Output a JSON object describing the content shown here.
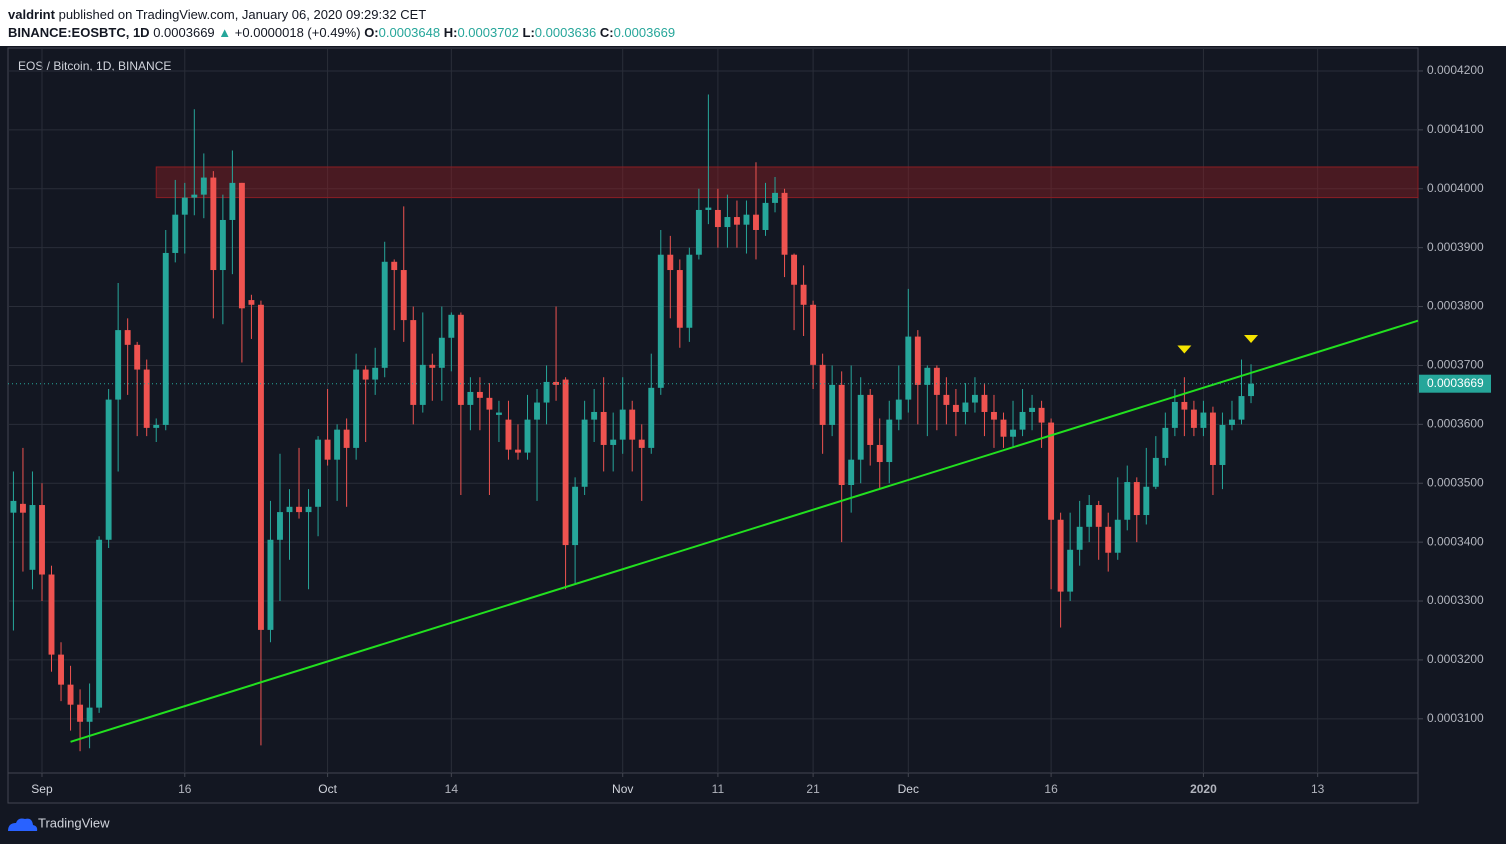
{
  "header": {
    "author": "valdrint",
    "published": "published on TradingView.com, January 06, 2020 09:29:32 CET",
    "symbol": "BINANCE:EOSBTC, 1D",
    "price": "0.0003669",
    "arrow": "▲",
    "change": "+0.0000018 (+0.49%)",
    "o_label": "O:",
    "o": "0.0003648",
    "h_label": "H:",
    "h": "0.0003702",
    "l_label": "L:",
    "l": "0.0003636",
    "c_label": "C:",
    "c": "0.0003669"
  },
  "footer": {
    "logo": "TradingView"
  },
  "chart_data": {
    "type": "candlestick",
    "title": "EOS / Bitcoin, 1D, BINANCE",
    "up_color": "#26a69a",
    "down_color": "#ef5350",
    "grid": true,
    "xlim": [
      -3.57,
      144.54
    ],
    "ylim": [
      0.0003008,
      0.0004239
    ],
    "xticks": [
      {
        "value": 0,
        "label": "Sep"
      },
      {
        "value": 15,
        "label": "16"
      },
      {
        "value": 30,
        "label": "Oct"
      },
      {
        "value": 43,
        "label": "14"
      },
      {
        "value": 61,
        "label": "Nov"
      },
      {
        "value": 71,
        "label": "11"
      },
      {
        "value": 81,
        "label": "21"
      },
      {
        "value": 91,
        "label": "Dec"
      },
      {
        "value": 106,
        "label": "16"
      },
      {
        "value": 122,
        "label": "2020"
      },
      {
        "value": 134,
        "label": "13"
      }
    ],
    "yticks": [
      {
        "value": 0.00031,
        "label": "0.0003100"
      },
      {
        "value": 0.00032,
        "label": "0.0003200"
      },
      {
        "value": 0.00033,
        "label": "0.0003300"
      },
      {
        "value": 0.00034,
        "label": "0.0003400"
      },
      {
        "value": 0.00035,
        "label": "0.0003500"
      },
      {
        "value": 0.00036,
        "label": "0.0003600"
      },
      {
        "value": 0.00037,
        "label": "0.0003700"
      },
      {
        "value": 0.00038,
        "label": "0.0003800"
      },
      {
        "value": 0.00039,
        "label": "0.0003900"
      },
      {
        "value": 0.0004,
        "label": "0.0004000"
      },
      {
        "value": 0.00041,
        "label": "0.0004100"
      },
      {
        "value": 0.00042,
        "label": "0.0004200"
      }
    ],
    "last_price": 0.0003669,
    "zone": {
      "x": [
        12,
        144.54
      ],
      "y": [
        0.0003985,
        0.0004037
      ],
      "color": "#8b1e24"
    },
    "trendline": {
      "x": [
        3,
        144.54
      ],
      "y": [
        0.0003061,
        0.0003776
      ],
      "color": "#22e01f"
    },
    "markers": {
      "x": [
        120,
        127
      ],
      "y": [
        0.0003727,
        0.0003745
      ],
      "color": "#f5e400"
    },
    "candles": [
      {
        "x": -3,
        "o": 0.000345,
        "h": 0.000352,
        "l": 0.000325,
        "c": 0.000347
      },
      {
        "x": -2,
        "o": 0.0003465,
        "h": 0.000356,
        "l": 0.000335,
        "c": 0.000345
      },
      {
        "x": -1,
        "o": 0.0003353,
        "h": 0.000352,
        "l": 0.000332,
        "c": 0.0003463
      },
      {
        "x": 0,
        "o": 0.0003463,
        "h": 0.00035,
        "l": 0.00033,
        "c": 0.0003345
      },
      {
        "x": 1,
        "o": 0.0003345,
        "h": 0.000336,
        "l": 0.000318,
        "c": 0.0003209
      },
      {
        "x": 2,
        "o": 0.0003209,
        "h": 0.000323,
        "l": 0.000313,
        "c": 0.0003158
      },
      {
        "x": 3,
        "o": 0.0003158,
        "h": 0.000319,
        "l": 0.000308,
        "c": 0.0003124
      },
      {
        "x": 4,
        "o": 0.0003124,
        "h": 0.000315,
        "l": 0.0003045,
        "c": 0.0003095
      },
      {
        "x": 5,
        "o": 0.0003095,
        "h": 0.000316,
        "l": 0.000305,
        "c": 0.0003119
      },
      {
        "x": 6,
        "o": 0.0003119,
        "h": 0.000341,
        "l": 0.000311,
        "c": 0.0003404
      },
      {
        "x": 7,
        "o": 0.0003404,
        "h": 0.000366,
        "l": 0.000339,
        "c": 0.0003642
      },
      {
        "x": 8,
        "o": 0.0003642,
        "h": 0.000384,
        "l": 0.000352,
        "c": 0.000376
      },
      {
        "x": 9,
        "o": 0.000376,
        "h": 0.000378,
        "l": 0.000365,
        "c": 0.0003735
      },
      {
        "x": 10,
        "o": 0.0003735,
        "h": 0.000374,
        "l": 0.000358,
        "c": 0.0003693
      },
      {
        "x": 11,
        "o": 0.0003693,
        "h": 0.000371,
        "l": 0.000358,
        "c": 0.0003594
      },
      {
        "x": 12,
        "o": 0.0003594,
        "h": 0.000361,
        "l": 0.000357,
        "c": 0.0003599
      },
      {
        "x": 13,
        "o": 0.0003599,
        "h": 0.000393,
        "l": 0.000359,
        "c": 0.0003891
      },
      {
        "x": 14,
        "o": 0.0003891,
        "h": 0.0004015,
        "l": 0.0003875,
        "c": 0.0003956
      },
      {
        "x": 15,
        "o": 0.0003956,
        "h": 0.000401,
        "l": 0.000389,
        "c": 0.0003985
      },
      {
        "x": 16,
        "o": 0.0003985,
        "h": 0.0004135,
        "l": 0.0003955,
        "c": 0.000399
      },
      {
        "x": 17,
        "o": 0.000399,
        "h": 0.000406,
        "l": 0.000395,
        "c": 0.0004019
      },
      {
        "x": 18,
        "o": 0.0004019,
        "h": 0.000403,
        "l": 0.000378,
        "c": 0.0003862
      },
      {
        "x": 19,
        "o": 0.0003862,
        "h": 0.000399,
        "l": 0.000377,
        "c": 0.0003947
      },
      {
        "x": 20,
        "o": 0.0003947,
        "h": 0.0004065,
        "l": 0.0003855,
        "c": 0.000401
      },
      {
        "x": 21,
        "o": 0.000401,
        "h": 0.000401,
        "l": 0.0003705,
        "c": 0.0003797
      },
      {
        "x": 22,
        "o": 0.0003811,
        "h": 0.000382,
        "l": 0.0003745,
        "c": 0.0003803
      },
      {
        "x": 23,
        "o": 0.0003803,
        "h": 0.000381,
        "l": 0.0003055,
        "c": 0.0003251
      },
      {
        "x": 24,
        "o": 0.0003251,
        "h": 0.000347,
        "l": 0.000323,
        "c": 0.0003404
      },
      {
        "x": 25,
        "o": 0.0003404,
        "h": 0.000355,
        "l": 0.00033,
        "c": 0.0003451
      },
      {
        "x": 26,
        "o": 0.0003451,
        "h": 0.000349,
        "l": 0.000337,
        "c": 0.000346
      },
      {
        "x": 27,
        "o": 0.000346,
        "h": 0.000356,
        "l": 0.000344,
        "c": 0.0003451
      },
      {
        "x": 28,
        "o": 0.0003451,
        "h": 0.000349,
        "l": 0.000332,
        "c": 0.000346
      },
      {
        "x": 29,
        "o": 0.000346,
        "h": 0.000358,
        "l": 0.000341,
        "c": 0.0003574
      },
      {
        "x": 30,
        "o": 0.0003574,
        "h": 0.000366,
        "l": 0.000353,
        "c": 0.000354
      },
      {
        "x": 31,
        "o": 0.000354,
        "h": 0.00036,
        "l": 0.000347,
        "c": 0.0003591
      },
      {
        "x": 32,
        "o": 0.0003591,
        "h": 0.000361,
        "l": 0.000346,
        "c": 0.000356
      },
      {
        "x": 33,
        "o": 0.000356,
        "h": 0.000372,
        "l": 0.000354,
        "c": 0.0003693
      },
      {
        "x": 34,
        "o": 0.0003693,
        "h": 0.00037,
        "l": 0.000357,
        "c": 0.0003676
      },
      {
        "x": 35,
        "o": 0.0003676,
        "h": 0.000373,
        "l": 0.000365,
        "c": 0.0003696
      },
      {
        "x": 36,
        "o": 0.0003696,
        "h": 0.000391,
        "l": 0.000368,
        "c": 0.0003876
      },
      {
        "x": 37,
        "o": 0.0003876,
        "h": 0.000388,
        "l": 0.000376,
        "c": 0.0003862
      },
      {
        "x": 38,
        "o": 0.0003862,
        "h": 0.000397,
        "l": 0.000374,
        "c": 0.0003777
      },
      {
        "x": 39,
        "o": 0.0003777,
        "h": 0.00038,
        "l": 0.00036,
        "c": 0.0003633
      },
      {
        "x": 40,
        "o": 0.0003633,
        "h": 0.000379,
        "l": 0.000362,
        "c": 0.0003701
      },
      {
        "x": 41,
        "o": 0.0003701,
        "h": 0.000372,
        "l": 0.000364,
        "c": 0.0003696
      },
      {
        "x": 42,
        "o": 0.0003696,
        "h": 0.00038,
        "l": 0.000364,
        "c": 0.0003747
      },
      {
        "x": 43,
        "o": 0.0003747,
        "h": 0.000379,
        "l": 0.000369,
        "c": 0.0003786
      },
      {
        "x": 44,
        "o": 0.0003786,
        "h": 0.000379,
        "l": 0.000348,
        "c": 0.0003633
      },
      {
        "x": 45,
        "o": 0.0003633,
        "h": 0.000368,
        "l": 0.000359,
        "c": 0.0003655
      },
      {
        "x": 46,
        "o": 0.0003655,
        "h": 0.000368,
        "l": 0.000359,
        "c": 0.0003645
      },
      {
        "x": 47,
        "o": 0.0003645,
        "h": 0.000367,
        "l": 0.000348,
        "c": 0.0003625
      },
      {
        "x": 48,
        "o": 0.0003616,
        "h": 0.000364,
        "l": 0.000357,
        "c": 0.000362
      },
      {
        "x": 49,
        "o": 0.0003608,
        "h": 0.000364,
        "l": 0.000354,
        "c": 0.0003557
      },
      {
        "x": 50,
        "o": 0.0003557,
        "h": 0.00036,
        "l": 0.000354,
        "c": 0.0003552
      },
      {
        "x": 51,
        "o": 0.0003552,
        "h": 0.000365,
        "l": 0.000354,
        "c": 0.0003608
      },
      {
        "x": 52,
        "o": 0.0003608,
        "h": 0.000366,
        "l": 0.000347,
        "c": 0.0003637
      },
      {
        "x": 53,
        "o": 0.0003637,
        "h": 0.00037,
        "l": 0.00036,
        "c": 0.0003672
      },
      {
        "x": 54,
        "o": 0.0003672,
        "h": 0.00038,
        "l": 0.000364,
        "c": 0.0003667
      },
      {
        "x": 55,
        "o": 0.0003676,
        "h": 0.000368,
        "l": 0.000332,
        "c": 0.0003395
      },
      {
        "x": 56,
        "o": 0.0003395,
        "h": 0.000351,
        "l": 0.000333,
        "c": 0.0003494
      },
      {
        "x": 57,
        "o": 0.0003494,
        "h": 0.000364,
        "l": 0.000348,
        "c": 0.0003608
      },
      {
        "x": 58,
        "o": 0.0003608,
        "h": 0.000366,
        "l": 0.000357,
        "c": 0.0003621
      },
      {
        "x": 59,
        "o": 0.0003621,
        "h": 0.000368,
        "l": 0.000352,
        "c": 0.0003565
      },
      {
        "x": 60,
        "o": 0.0003565,
        "h": 0.000362,
        "l": 0.000352,
        "c": 0.0003574
      },
      {
        "x": 61,
        "o": 0.0003574,
        "h": 0.000368,
        "l": 0.000355,
        "c": 0.0003625
      },
      {
        "x": 62,
        "o": 0.0003625,
        "h": 0.000364,
        "l": 0.000352,
        "c": 0.0003574
      },
      {
        "x": 63,
        "o": 0.0003574,
        "h": 0.00036,
        "l": 0.000347,
        "c": 0.000356
      },
      {
        "x": 64,
        "o": 0.000356,
        "h": 0.000372,
        "l": 0.000355,
        "c": 0.0003662
      },
      {
        "x": 65,
        "o": 0.0003662,
        "h": 0.000393,
        "l": 0.000365,
        "c": 0.0003888
      },
      {
        "x": 66,
        "o": 0.0003888,
        "h": 0.000392,
        "l": 0.000378,
        "c": 0.0003862
      },
      {
        "x": 67,
        "o": 0.0003862,
        "h": 0.000388,
        "l": 0.000373,
        "c": 0.0003764
      },
      {
        "x": 68,
        "o": 0.0003764,
        "h": 0.00039,
        "l": 0.000374,
        "c": 0.0003888
      },
      {
        "x": 69,
        "o": 0.0003888,
        "h": 0.0004,
        "l": 0.000388,
        "c": 0.0003964
      },
      {
        "x": 70,
        "o": 0.0003964,
        "h": 0.000416,
        "l": 0.000394,
        "c": 0.0003968
      },
      {
        "x": 71,
        "o": 0.0003964,
        "h": 0.0004,
        "l": 0.00039,
        "c": 0.0003935
      },
      {
        "x": 72,
        "o": 0.0003935,
        "h": 0.000399,
        "l": 0.00039,
        "c": 0.0003952
      },
      {
        "x": 73,
        "o": 0.0003952,
        "h": 0.000398,
        "l": 0.00039,
        "c": 0.0003939
      },
      {
        "x": 74,
        "o": 0.0003939,
        "h": 0.000398,
        "l": 0.000389,
        "c": 0.0003956
      },
      {
        "x": 75,
        "o": 0.0003956,
        "h": 0.0004045,
        "l": 0.000388,
        "c": 0.000393
      },
      {
        "x": 76,
        "o": 0.000393,
        "h": 0.000401,
        "l": 0.000392,
        "c": 0.0003976
      },
      {
        "x": 77,
        "o": 0.0003976,
        "h": 0.000402,
        "l": 0.000396,
        "c": 0.0003993
      },
      {
        "x": 78,
        "o": 0.0003993,
        "h": 0.0004,
        "l": 0.000385,
        "c": 0.0003888
      },
      {
        "x": 79,
        "o": 0.0003888,
        "h": 0.000389,
        "l": 0.000376,
        "c": 0.0003837
      },
      {
        "x": 80,
        "o": 0.0003837,
        "h": 0.000387,
        "l": 0.000375,
        "c": 0.0003803
      },
      {
        "x": 81,
        "o": 0.0003803,
        "h": 0.000381,
        "l": 0.000366,
        "c": 0.0003701
      },
      {
        "x": 82,
        "o": 0.0003701,
        "h": 0.000372,
        "l": 0.000355,
        "c": 0.0003599
      },
      {
        "x": 83,
        "o": 0.0003599,
        "h": 0.00037,
        "l": 0.000358,
        "c": 0.0003667
      },
      {
        "x": 84,
        "o": 0.0003667,
        "h": 0.000369,
        "l": 0.00034,
        "c": 0.0003497
      },
      {
        "x": 85,
        "o": 0.0003497,
        "h": 0.00037,
        "l": 0.000345,
        "c": 0.000354
      },
      {
        "x": 86,
        "o": 0.000354,
        "h": 0.000368,
        "l": 0.00035,
        "c": 0.000365
      },
      {
        "x": 87,
        "o": 0.000365,
        "h": 0.000366,
        "l": 0.000353,
        "c": 0.0003565
      },
      {
        "x": 88,
        "o": 0.0003565,
        "h": 0.000361,
        "l": 0.000349,
        "c": 0.0003536
      },
      {
        "x": 89,
        "o": 0.0003536,
        "h": 0.000364,
        "l": 0.00035,
        "c": 0.0003608
      },
      {
        "x": 90,
        "o": 0.0003608,
        "h": 0.00037,
        "l": 0.000359,
        "c": 0.0003642
      },
      {
        "x": 91,
        "o": 0.0003642,
        "h": 0.000383,
        "l": 0.000362,
        "c": 0.0003749
      },
      {
        "x": 92,
        "o": 0.0003749,
        "h": 0.000376,
        "l": 0.00036,
        "c": 0.0003667
      },
      {
        "x": 93,
        "o": 0.0003667,
        "h": 0.00037,
        "l": 0.000358,
        "c": 0.0003696
      },
      {
        "x": 94,
        "o": 0.0003696,
        "h": 0.00037,
        "l": 0.000359,
        "c": 0.000365
      },
      {
        "x": 95,
        "o": 0.000365,
        "h": 0.000368,
        "l": 0.00036,
        "c": 0.0003633
      },
      {
        "x": 96,
        "o": 0.0003633,
        "h": 0.000366,
        "l": 0.000358,
        "c": 0.0003621
      },
      {
        "x": 97,
        "o": 0.0003621,
        "h": 0.000367,
        "l": 0.00036,
        "c": 0.0003637
      },
      {
        "x": 98,
        "o": 0.0003637,
        "h": 0.000368,
        "l": 0.000362,
        "c": 0.000365
      },
      {
        "x": 99,
        "o": 0.000365,
        "h": 0.000367,
        "l": 0.000358,
        "c": 0.0003621
      },
      {
        "x": 100,
        "o": 0.0003621,
        "h": 0.000365,
        "l": 0.000356,
        "c": 0.0003608
      },
      {
        "x": 101,
        "o": 0.0003608,
        "h": 0.000362,
        "l": 0.000356,
        "c": 0.0003579
      },
      {
        "x": 102,
        "o": 0.0003579,
        "h": 0.000364,
        "l": 0.000356,
        "c": 0.0003591
      },
      {
        "x": 103,
        "o": 0.0003591,
        "h": 0.000366,
        "l": 0.000358,
        "c": 0.0003621
      },
      {
        "x": 104,
        "o": 0.0003621,
        "h": 0.000365,
        "l": 0.000359,
        "c": 0.0003628
      },
      {
        "x": 105,
        "o": 0.0003628,
        "h": 0.000364,
        "l": 0.000356,
        "c": 0.0003603
      },
      {
        "x": 106,
        "o": 0.0003603,
        "h": 0.000361,
        "l": 0.000332,
        "c": 0.0003438
      },
      {
        "x": 107,
        "o": 0.0003438,
        "h": 0.000345,
        "l": 0.0003255,
        "c": 0.0003316
      },
      {
        "x": 108,
        "o": 0.0003316,
        "h": 0.000345,
        "l": 0.00033,
        "c": 0.0003387
      },
      {
        "x": 109,
        "o": 0.0003387,
        "h": 0.000347,
        "l": 0.000336,
        "c": 0.0003426
      },
      {
        "x": 110,
        "o": 0.0003426,
        "h": 0.000348,
        "l": 0.00034,
        "c": 0.0003463
      },
      {
        "x": 111,
        "o": 0.0003463,
        "h": 0.000347,
        "l": 0.000337,
        "c": 0.0003426
      },
      {
        "x": 112,
        "o": 0.0003426,
        "h": 0.000345,
        "l": 0.000335,
        "c": 0.0003382
      },
      {
        "x": 113,
        "o": 0.0003382,
        "h": 0.000351,
        "l": 0.000337,
        "c": 0.0003438
      },
      {
        "x": 114,
        "o": 0.0003438,
        "h": 0.000353,
        "l": 0.000342,
        "c": 0.0003502
      },
      {
        "x": 115,
        "o": 0.0003502,
        "h": 0.000351,
        "l": 0.00034,
        "c": 0.0003446
      },
      {
        "x": 116,
        "o": 0.0003446,
        "h": 0.000356,
        "l": 0.000343,
        "c": 0.0003494
      },
      {
        "x": 117,
        "o": 0.0003494,
        "h": 0.000358,
        "l": 0.000349,
        "c": 0.0003543
      },
      {
        "x": 118,
        "o": 0.0003543,
        "h": 0.000362,
        "l": 0.000353,
        "c": 0.0003594
      },
      {
        "x": 119,
        "o": 0.0003594,
        "h": 0.000366,
        "l": 0.000358,
        "c": 0.0003638
      },
      {
        "x": 120,
        "o": 0.0003638,
        "h": 0.000368,
        "l": 0.000358,
        "c": 0.0003625
      },
      {
        "x": 121,
        "o": 0.0003625,
        "h": 0.000364,
        "l": 0.000358,
        "c": 0.0003594
      },
      {
        "x": 122,
        "o": 0.0003594,
        "h": 0.000364,
        "l": 0.000358,
        "c": 0.000362
      },
      {
        "x": 123,
        "o": 0.000362,
        "h": 0.000363,
        "l": 0.000348,
        "c": 0.0003531
      },
      {
        "x": 124,
        "o": 0.0003531,
        "h": 0.000362,
        "l": 0.000349,
        "c": 0.0003599
      },
      {
        "x": 125,
        "o": 0.0003599,
        "h": 0.000364,
        "l": 0.000359,
        "c": 0.0003608
      },
      {
        "x": 126,
        "o": 0.0003608,
        "h": 0.000371,
        "l": 0.00036,
        "c": 0.0003648
      },
      {
        "x": 127,
        "o": 0.0003648,
        "h": 0.0003702,
        "l": 0.0003636,
        "c": 0.0003669
      }
    ]
  }
}
